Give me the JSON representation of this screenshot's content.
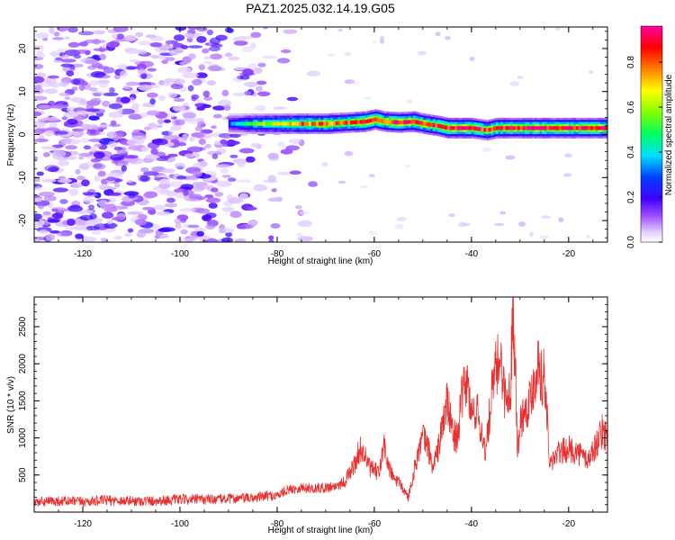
{
  "title": "PAZ1.2025.032.14.19.G05",
  "chart_data": [
    {
      "type": "heatmap",
      "title": "PAZ1.2025.032.14.19.G05",
      "xlabel": "Height of straight line (km)",
      "ylabel": "Frequency (Hz)",
      "xlim": [
        -130,
        -12
      ],
      "ylim": [
        -25,
        25
      ],
      "x_ticks": [
        "-120",
        "-100",
        "-80",
        "-60",
        "-40",
        "-20"
      ],
      "x_tick_values": [
        -120,
        -100,
        -80,
        -60,
        -40,
        -20
      ],
      "y_ticks": [
        "-20",
        "-10",
        "0",
        "10",
        "20"
      ],
      "y_tick_values": [
        -20,
        -10,
        0,
        10,
        20
      ],
      "noise_region_upper_x": -78,
      "signal_start_x": -90,
      "signal_frequency_trace": {
        "x": [
          -90,
          -85,
          -80,
          -75,
          -70,
          -65,
          -62,
          -60,
          -58,
          -55,
          -52,
          -50,
          -47,
          -45,
          -40,
          -37,
          -35,
          -30,
          -25,
          -20,
          -15,
          -12
        ],
        "freq": [
          2.5,
          2.5,
          2.5,
          2.5,
          2.5,
          2.8,
          3.0,
          3.5,
          3.0,
          2.8,
          3.0,
          2.5,
          2.0,
          1.5,
          1.5,
          1.0,
          1.5,
          1.5,
          1.5,
          1.5,
          1.5,
          1.5
        ],
        "amplitude": [
          0.3,
          0.55,
          0.65,
          0.75,
          0.8,
          0.8,
          0.95,
          0.9,
          0.85,
          0.9,
          0.88,
          0.85,
          0.8,
          0.9,
          0.92,
          0.8,
          0.85,
          0.9,
          0.9,
          0.88,
          0.9,
          0.9
        ]
      },
      "colorbar": {
        "label": "Normalized spectral amplitude",
        "ticks": [
          "0.0",
          "0.2",
          "0.4",
          "0.6",
          "0.8"
        ],
        "tick_values": [
          0.0,
          0.2,
          0.4,
          0.6,
          0.8
        ],
        "range": [
          0,
          0.96
        ],
        "colormap": "rainbow-white-purple-blue-cyan-green-yellow-red-magenta"
      }
    },
    {
      "type": "line",
      "xlabel": "Height of straight line (km)",
      "ylabel": "SNR (10 * v/v)",
      "xlim": [
        -130,
        -12
      ],
      "ylim": [
        0,
        2900
      ],
      "x_ticks": [
        "-120",
        "-100",
        "-80",
        "-60",
        "-40",
        "-20"
      ],
      "x_tick_values": [
        -120,
        -100,
        -80,
        -60,
        -40,
        -20
      ],
      "y_ticks": [
        "500",
        "1000",
        "1500",
        "2000",
        "2500"
      ],
      "y_tick_values": [
        500,
        1000,
        1500,
        2000,
        2500
      ],
      "color": "#e83030",
      "series": [
        {
          "x": [
            -130,
            -125,
            -120,
            -115,
            -110,
            -105,
            -100,
            -95,
            -90,
            -85,
            -82,
            -80,
            -78,
            -75,
            -72,
            -70,
            -68,
            -66,
            -64,
            -63,
            -62,
            -61,
            -60,
            -59,
            -58,
            -57,
            -56,
            -55,
            -54,
            -53,
            -52,
            -51,
            -50,
            -49,
            -48,
            -47,
            -46,
            -45,
            -44,
            -43,
            -42,
            -41,
            -40,
            -39,
            -38,
            -37,
            -36,
            -35,
            -34,
            -33,
            -32,
            -31.5,
            -31,
            -30.5,
            -30,
            -29,
            -28,
            -27,
            -26,
            -25.5,
            -25,
            -24.5,
            -24,
            -22,
            -20,
            -18,
            -16,
            -14,
            -13,
            -12
          ],
          "y": [
            130,
            150,
            140,
            160,
            150,
            150,
            170,
            170,
            180,
            190,
            220,
            220,
            300,
            330,
            320,
            330,
            350,
            420,
            650,
            850,
            780,
            600,
            560,
            520,
            900,
            600,
            450,
            400,
            300,
            200,
            500,
            800,
            1000,
            900,
            600,
            800,
            1150,
            1500,
            1100,
            1000,
            1500,
            1800,
            1300,
            1400,
            1100,
            800,
            1500,
            1900,
            2100,
            1500,
            1600,
            2750,
            2150,
            800,
            1200,
            1400,
            1500,
            1800,
            2100,
            1700,
            1900,
            1400,
            650,
            800,
            850,
            800,
            700,
            950,
            1100,
            1000
          ]
        }
      ]
    }
  ]
}
